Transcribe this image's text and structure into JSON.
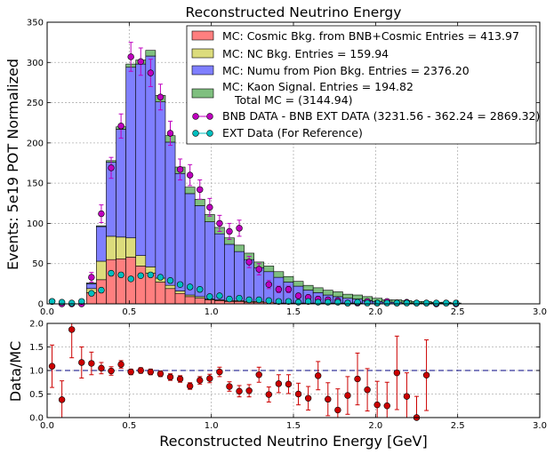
{
  "chart_data": [
    {
      "type": "bar",
      "title": "Reconstructed Neutrino Energy",
      "xlabel": "",
      "ylabel": "Events: 5e19 POT Normalized",
      "xlim": [
        0,
        3
      ],
      "ylim": [
        0,
        350
      ],
      "xticks": [
        "0.0",
        "0.5",
        "1.0",
        "1.5",
        "2.0",
        "2.5",
        "3.0"
      ],
      "yticks": [
        "0",
        "50",
        "100",
        "150",
        "200",
        "250",
        "300",
        "350"
      ],
      "grid": true,
      "stacked": true,
      "legend_position": "top-right",
      "bins": {
        "start": 0,
        "width": 0.06,
        "count": 42
      },
      "series": [
        {
          "name": "MC: Cosmic Bkg. from BNB+Cosmic Entries = 413.97",
          "color": "#ff7f7f",
          "values": [
            0,
            0,
            0,
            0,
            14,
            30,
            55,
            56,
            58,
            47,
            38,
            27,
            19,
            13,
            9,
            7,
            5,
            4,
            3,
            3,
            2,
            2,
            2,
            1,
            1,
            1,
            1,
            1,
            1,
            1,
            1,
            1,
            0,
            0,
            0,
            0,
            0,
            0,
            0,
            0,
            0,
            0
          ]
        },
        {
          "name": "MC: NC Bkg. Entries = 159.94",
          "color": "#dcdc7c",
          "values": [
            0,
            0,
            0,
            0,
            5,
            23,
            29,
            27,
            24,
            13,
            8,
            5,
            4,
            3,
            2,
            2,
            1,
            1,
            1,
            1,
            1,
            1,
            0,
            0,
            0,
            0,
            0,
            0,
            0,
            0,
            0,
            0,
            0,
            0,
            0,
            0,
            0,
            0,
            0,
            0,
            0,
            0
          ]
        },
        {
          "name": "MC: Numu from Pion Bkg. Entries = 2376.20",
          "color": "#7f7fff",
          "values": [
            0,
            0,
            0,
            0,
            6,
            43,
            92,
            134,
            212,
            238,
            262,
            219,
            178,
            146,
            126,
            113,
            96,
            82,
            70,
            61,
            52,
            42,
            38,
            32,
            26,
            21,
            16,
            13,
            10,
            8,
            6,
            5,
            4,
            3,
            2,
            2,
            1,
            1,
            1,
            1,
            1,
            0
          ]
        },
        {
          "name": "MC: Kaon Signal. Entries = 194.82",
          "color": "#7fbf7f",
          "values": [
            0,
            0,
            0,
            0,
            1,
            1,
            2,
            3,
            4,
            5,
            7,
            8,
            8,
            8,
            8,
            8,
            9,
            8,
            8,
            8,
            8,
            7,
            7,
            7,
            7,
            6,
            6,
            6,
            6,
            6,
            5,
            5,
            5,
            4,
            3,
            3,
            3,
            2,
            2,
            1,
            1,
            1
          ]
        }
      ],
      "extra_legend_text": "Total MC = (3144.94)",
      "points": [
        {
          "name": "BNB DATA - BNB EXT DATA (3231.56 - 362.24 = 2869.32)",
          "color": "#bf00bf",
          "x": [
            0.03,
            0.09,
            0.15,
            0.21,
            0.27,
            0.33,
            0.39,
            0.45,
            0.51,
            0.57,
            0.63,
            0.69,
            0.75,
            0.81,
            0.87,
            0.93,
            0.99,
            1.05,
            1.11,
            1.17,
            1.23,
            1.29,
            1.35,
            1.41,
            1.47,
            1.53,
            1.59,
            1.65,
            1.71,
            1.77,
            1.83,
            1.89,
            1.95,
            2.01,
            2.07,
            2.13,
            2.19,
            2.25,
            2.31,
            2.37,
            2.43,
            2.49
          ],
          "y": [
            3,
            0,
            0,
            0,
            33,
            112,
            169,
            221,
            307,
            301,
            287,
            257,
            212,
            167,
            160,
            142,
            120,
            100,
            90,
            94,
            52,
            43,
            24,
            18,
            18,
            10,
            8,
            6,
            5,
            4,
            1,
            1,
            3,
            1,
            3,
            1,
            2,
            1,
            1,
            0,
            1,
            0
          ],
          "yerr": [
            2,
            1,
            1,
            2,
            6,
            11,
            13,
            15,
            18,
            17,
            17,
            16,
            15,
            13,
            13,
            12,
            11,
            10,
            10,
            10,
            7,
            7,
            5,
            4,
            4,
            3,
            3,
            3,
            2,
            2,
            1,
            1,
            2,
            1,
            2,
            1,
            1,
            1,
            1,
            1,
            1,
            1
          ]
        },
        {
          "name": "EXT Data (For Reference)",
          "color": "#00bfbf",
          "x": [
            0.03,
            0.09,
            0.15,
            0.21,
            0.27,
            0.33,
            0.39,
            0.45,
            0.51,
            0.57,
            0.63,
            0.69,
            0.75,
            0.81,
            0.87,
            0.93,
            0.99,
            1.05,
            1.11,
            1.17,
            1.23,
            1.29,
            1.35,
            1.41,
            1.47,
            1.53,
            1.59,
            1.65,
            1.71,
            1.77,
            1.83,
            1.89,
            1.95,
            2.01,
            2.07,
            2.13,
            2.19,
            2.25,
            2.31,
            2.37,
            2.43,
            2.49
          ],
          "y": [
            3,
            2,
            1,
            3,
            13,
            17,
            38,
            36,
            31,
            35,
            36,
            33,
            29,
            24,
            21,
            18,
            9,
            10,
            6,
            7,
            5,
            5,
            4,
            3,
            3,
            2,
            3,
            2,
            2,
            2,
            1,
            2,
            1,
            1,
            1,
            1,
            1,
            1,
            1,
            1,
            1,
            1
          ]
        }
      ]
    },
    {
      "type": "scatter",
      "title": "",
      "xlabel": "Reconstructed Neutrino Energy [GeV]",
      "ylabel": "Data/MC",
      "xlim": [
        0,
        3
      ],
      "ylim": [
        0,
        2
      ],
      "xticks": [
        "0.0",
        "0.5",
        "1.0",
        "1.5",
        "2.0",
        "2.5",
        "3.0"
      ],
      "yticks": [
        "0.0",
        "0.5",
        "1.0",
        "1.5",
        "2.0"
      ],
      "grid": true,
      "reference_line": 1.0,
      "series": [
        {
          "name": "",
          "color": "#cc0000",
          "x": [
            0.03,
            0.09,
            0.15,
            0.21,
            0.27,
            0.33,
            0.39,
            0.45,
            0.51,
            0.57,
            0.63,
            0.69,
            0.75,
            0.81,
            0.87,
            0.93,
            0.99,
            1.05,
            1.11,
            1.17,
            1.23,
            1.29,
            1.35,
            1.41,
            1.47,
            1.53,
            1.59,
            1.65,
            1.71,
            1.77,
            1.83,
            1.89,
            1.95,
            2.01,
            2.07,
            2.13,
            2.19,
            2.25,
            2.31,
            2.37,
            2.43,
            2.49
          ],
          "y": [
            1.09,
            0.38,
            1.87,
            1.17,
            1.15,
            1.05,
            0.99,
            1.13,
            0.97,
            1.0,
            0.97,
            0.93,
            0.86,
            0.82,
            0.67,
            0.79,
            0.83,
            0.97,
            0.66,
            0.56,
            0.57,
            0.91,
            0.49,
            0.72,
            0.71,
            0.5,
            0.41,
            0.89,
            0.39,
            0.16,
            0.47,
            0.82,
            0.59,
            0.27,
            0.25,
            0.95,
            0.45,
            0.0,
            0.9,
            null,
            null,
            null
          ],
          "yerr": [
            0.45,
            0.4,
            0.6,
            0.33,
            0.24,
            0.12,
            0.09,
            0.08,
            0.06,
            0.06,
            0.06,
            0.06,
            0.07,
            0.07,
            0.07,
            0.08,
            0.09,
            0.1,
            0.1,
            0.12,
            0.13,
            0.16,
            0.16,
            0.19,
            0.2,
            0.23,
            0.25,
            0.3,
            0.35,
            0.45,
            0.4,
            0.55,
            0.45,
            0.5,
            0.5,
            0.78,
            0.5,
            0.45,
            0.75,
            null,
            null,
            null
          ]
        }
      ]
    }
  ]
}
